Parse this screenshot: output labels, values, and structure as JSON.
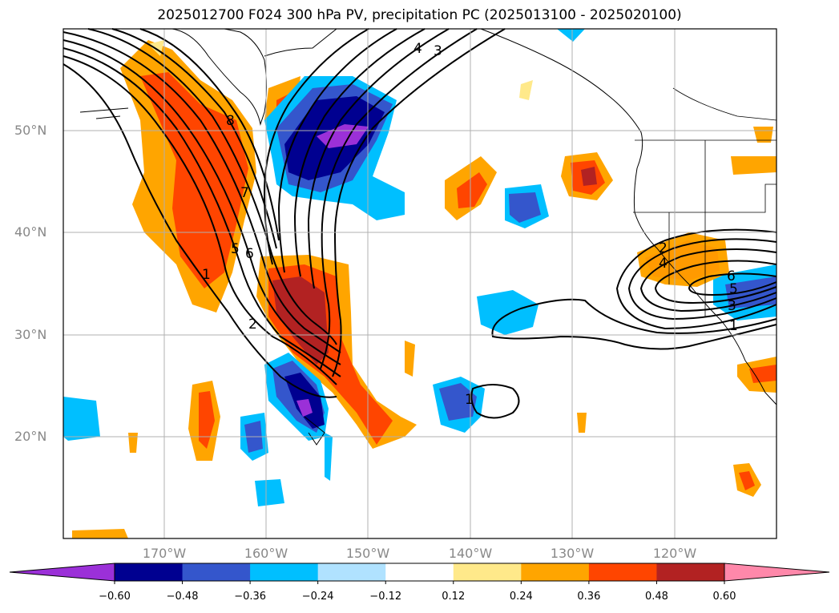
{
  "title": "2025012700 F024 300 hPa PV, precipitation PC (2025013100 - 2025020100)",
  "lat_labels": [
    "50°N",
    "40°N",
    "30°N",
    "20°N"
  ],
  "lon_labels": [
    "170°W",
    "160°W",
    "150°W",
    "140°W",
    "130°W",
    "120°W"
  ],
  "colorbar": {
    "ticks": [
      "−0.60",
      "−0.48",
      "−0.36",
      "−0.24",
      "−0.12",
      "0.12",
      "0.24",
      "0.36",
      "0.48",
      "0.60"
    ],
    "colors": [
      "#9b30d8",
      "#000090",
      "#3456cc",
      "#00bfff",
      "#b0e2ff",
      "#ffffff",
      "#ffe98a",
      "#ffa500",
      "#ff4500",
      "#b22222",
      "#ff88aa"
    ]
  },
  "contour_labels": [
    "4",
    "3",
    "8",
    "7",
    "5",
    "6",
    "1",
    "2",
    "2",
    "4",
    "6",
    "5",
    "3",
    "1",
    "1"
  ]
}
